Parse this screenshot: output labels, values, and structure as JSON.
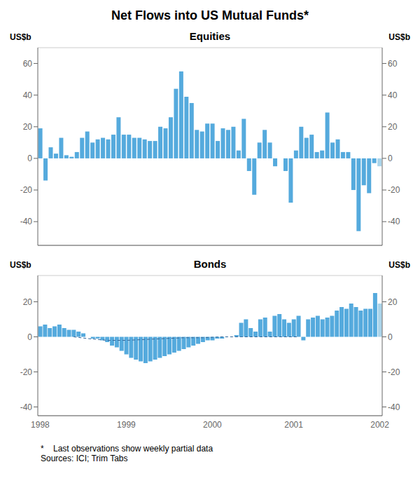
{
  "title": "Net Flows into US Mutual Funds*",
  "footnote": "*    Last observations show weekly partial data\nSources: ICI; Trim Tabs",
  "chart_data": [
    {
      "type": "bar",
      "title": "Equities",
      "ylabel": "US$b",
      "y2label": "US$b",
      "ylim": [
        -55,
        70
      ],
      "yticks": [
        -40,
        -20,
        0,
        20,
        40,
        60
      ],
      "y2lim": [
        -55,
        70
      ],
      "y2ticks": [
        -40,
        -20,
        0,
        20,
        40,
        60
      ],
      "grid": true,
      "tick_labels": "y",
      "series": [
        {
          "type": "bar",
          "values": [
            19,
            -14,
            7,
            3,
            13,
            2,
            1,
            4,
            13,
            17,
            10,
            12,
            13,
            12,
            15,
            26,
            15,
            15,
            13,
            13,
            12,
            11,
            11,
            20,
            19,
            26,
            44,
            55,
            39,
            35,
            18,
            17,
            22,
            22,
            11,
            19,
            18,
            20,
            5,
            25,
            -8,
            -23,
            10,
            18,
            10,
            -5,
            0,
            -8,
            -28,
            5,
            20,
            13,
            15,
            4,
            5,
            29,
            10,
            12,
            4,
            4,
            -20,
            -46,
            -17,
            -22,
            -3,
            -5
          ],
          "colors": [
            "#55aadd",
            "#55aadd",
            "#55aadd",
            "#55aadd",
            "#55aadd",
            "#55aadd",
            "#55aadd",
            "#55aadd",
            "#55aadd",
            "#55aadd",
            "#55aadd",
            "#55aadd",
            "#55aadd",
            "#55aadd",
            "#55aadd",
            "#55aadd",
            "#55aadd",
            "#55aadd",
            "#55aadd",
            "#55aadd",
            "#55aadd",
            "#55aadd",
            "#55aadd",
            "#55aadd",
            "#55aadd",
            "#55aadd",
            "#55aadd",
            "#55aadd",
            "#55aadd",
            "#55aadd",
            "#55aadd",
            "#55aadd",
            "#55aadd",
            "#55aadd",
            "#55aadd",
            "#55aadd",
            "#55aadd",
            "#55aadd",
            "#55aadd",
            "#55aadd",
            "#55aadd",
            "#55aadd",
            "#55aadd",
            "#55aadd",
            "#55aadd",
            "#55aadd",
            "#55aadd",
            "#55aadd",
            "#55aadd",
            "#55aadd",
            "#55aadd",
            "#55aadd",
            "#55aadd",
            "#55aadd",
            "#55aadd",
            "#55aadd",
            "#55aadd",
            "#55aadd",
            "#55aadd",
            "#55aadd",
            "#55aadd",
            "#55aadd",
            "#55aadd",
            "#55aadd",
            "#55aadd",
            "#aad4ea"
          ]
        }
      ]
    },
    {
      "type": "bar",
      "title": "Bonds",
      "ylabel": "US$b",
      "y2label": "US$b",
      "ylim": [
        -45,
        35
      ],
      "yticks": [
        -40,
        -20,
        0,
        20
      ],
      "y2lim": [
        -45,
        35
      ],
      "y2ticks": [
        -40,
        -20,
        0,
        20
      ],
      "grid": true,
      "categories": [
        "1998",
        null,
        null,
        null,
        null,
        null,
        null,
        null,
        null,
        null,
        null,
        null,
        null,
        null,
        null,
        null,
        null,
        null,
        "1999",
        null,
        null,
        null,
        null,
        null,
        null,
        null,
        null,
        null,
        null,
        null,
        null,
        null,
        null,
        null,
        null,
        null,
        "2000",
        null,
        null,
        null,
        null,
        null,
        null,
        null,
        null,
        null,
        null,
        null,
        null,
        null,
        null,
        null,
        null,
        "2001",
        null,
        null,
        null,
        null,
        null,
        null,
        null,
        null,
        null,
        null,
        null,
        null,
        null,
        null,
        null,
        null,
        null,
        "2002"
      ],
      "series": [
        {
          "type": "bar",
          "values": [
            6,
            7,
            5,
            6,
            7,
            5,
            4,
            4,
            3,
            2,
            0,
            -1,
            -1,
            -2,
            -3,
            -5,
            -6,
            -8,
            -10,
            -12,
            -13,
            -14,
            -15,
            -14,
            -13,
            -12,
            -11,
            -10,
            -9,
            -8,
            -7,
            -6,
            -5,
            -4,
            -3,
            -2,
            -2,
            -1,
            -1,
            0,
            0,
            1,
            8,
            10,
            5,
            3,
            10,
            11,
            3,
            12,
            13,
            10,
            8,
            10,
            12,
            -2,
            10,
            11,
            12,
            10,
            11,
            12,
            15,
            17,
            16,
            19,
            17,
            15,
            16,
            16,
            25,
            19
          ],
          "colors": [
            "#55aadd",
            "#55aadd",
            "#55aadd",
            "#55aadd",
            "#55aadd",
            "#55aadd",
            "#55aadd",
            "#55aadd",
            "#55aadd",
            "#55aadd",
            "#55aadd",
            "#55aadd",
            "#55aadd",
            "#55aadd",
            "#55aadd",
            "#55aadd",
            "#55aadd",
            "#55aadd",
            "#55aadd",
            "#55aadd",
            "#55aadd",
            "#55aadd",
            "#55aadd",
            "#55aadd",
            "#55aadd",
            "#55aadd",
            "#55aadd",
            "#55aadd",
            "#55aadd",
            "#55aadd",
            "#55aadd",
            "#55aadd",
            "#55aadd",
            "#55aadd",
            "#55aadd",
            "#55aadd",
            "#55aadd",
            "#55aadd",
            "#55aadd",
            "#55aadd",
            "#55aadd",
            "#55aadd",
            "#55aadd",
            "#55aadd",
            "#55aadd",
            "#55aadd",
            "#55aadd",
            "#55aadd",
            "#55aadd",
            "#55aadd",
            "#55aadd",
            "#55aadd",
            "#55aadd",
            "#55aadd",
            "#55aadd",
            "#55aadd",
            "#55aadd",
            "#55aadd",
            "#55aadd",
            "#55aadd",
            "#55aadd",
            "#55aadd",
            "#55aadd",
            "#55aadd",
            "#55aadd",
            "#55aadd",
            "#55aadd",
            "#55aadd",
            "#55aadd",
            "#55aadd",
            "#55aadd",
            "#aad4ea"
          ]
        },
        {
          "type": "line",
          "line_style": "dashed",
          "color": "#336699",
          "values": [
            null,
            null,
            null,
            null,
            null,
            null,
            null,
            0,
            null,
            null,
            -1,
            null,
            null,
            null,
            -2,
            null,
            null,
            null,
            -2,
            null,
            null,
            null,
            -1.5,
            null,
            null,
            null,
            -1,
            null,
            null,
            null,
            -0.5,
            null,
            null,
            null,
            -0.5,
            null,
            null,
            null,
            0,
            null,
            null,
            null,
            0,
            null,
            null,
            null,
            0,
            null,
            null,
            null,
            0,
            null,
            null,
            null,
            0,
            null,
            null,
            null,
            null,
            null,
            null,
            null,
            null,
            null,
            null,
            null,
            null,
            null,
            null,
            null,
            null,
            null
          ]
        }
      ]
    }
  ]
}
